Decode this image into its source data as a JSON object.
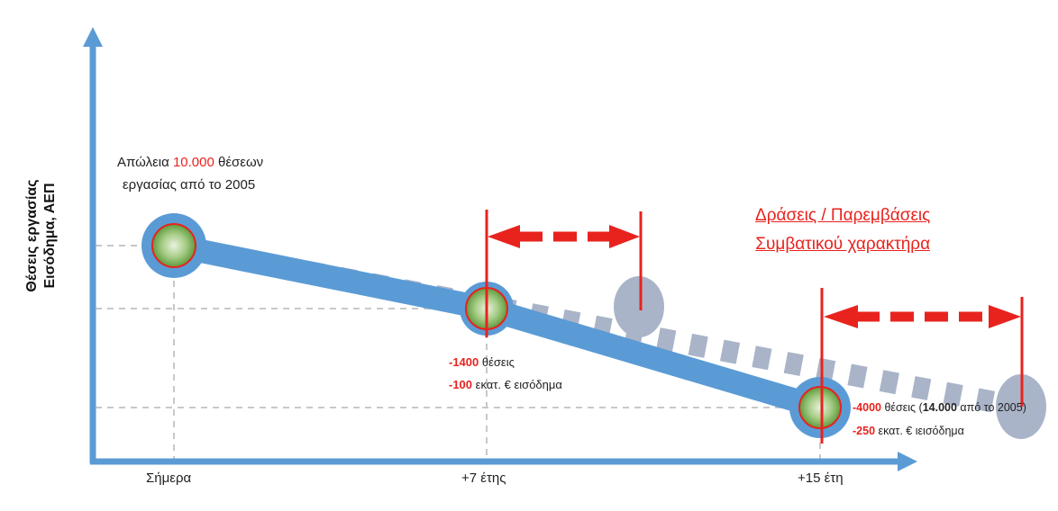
{
  "axes": {
    "y_label_line1": "Θέσεις εργασίας",
    "y_label_line2": "Εισόδημα,  ΑΕΠ",
    "x_ticks": [
      "Σήμερα",
      "+7 έτης",
      "+15 έτη"
    ]
  },
  "annotations": {
    "start_prefix": "Απώλεια ",
    "start_number": "10.000",
    "start_suffix": " θέσεων",
    "start_line2": "εργασίας από το 2005",
    "mid_jobs_value": "-1400",
    "mid_jobs_unit": " θέσεις",
    "mid_income_value": "-100",
    "mid_income_unit": " εκατ. € εισόδημα",
    "end_jobs_value": "-4000",
    "end_jobs_unit_a": " θέσεις (",
    "end_jobs_total": "14.000",
    "end_jobs_unit_b": " από το 2005)",
    "end_income_value": "-250",
    "end_income_unit": " εκατ. € ιεισόδημα"
  },
  "actions_title_line1": "Δράσεις / Παρεμβάσεις",
  "actions_title_line2": "Συμβατικού χαρακτήρα",
  "colors": {
    "axis": "#5b9bd5",
    "main_line": "#5b9bd5",
    "delayed_line": "#aab4c8",
    "accent_red": "#e8231e",
    "node_fill": "#8ebc6a",
    "ghost_node": "#aab4c8",
    "guide": "#c8c8c8"
  }
}
